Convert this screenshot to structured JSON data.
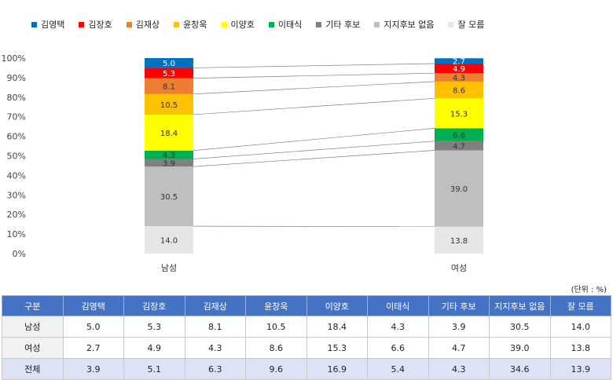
{
  "chart_data": {
    "type": "bar",
    "stacked": true,
    "normalized_percent": true,
    "categories": [
      "남성",
      "여성"
    ],
    "series": [
      {
        "name": "김영택",
        "color": "#0070c0",
        "values": [
          5.0,
          2.7
        ]
      },
      {
        "name": "김장호",
        "color": "#ff0000",
        "values": [
          5.3,
          4.9
        ]
      },
      {
        "name": "김재상",
        "color": "#ed7d31",
        "values": [
          8.1,
          4.3
        ]
      },
      {
        "name": "윤창욱",
        "color": "#ffc000",
        "values": [
          10.5,
          8.6
        ]
      },
      {
        "name": "이양호",
        "color": "#ffff00",
        "values": [
          18.4,
          15.3
        ]
      },
      {
        "name": "이태식",
        "color": "#00b050",
        "values": [
          4.3,
          6.6
        ]
      },
      {
        "name": "기타 후보",
        "color": "#808080",
        "values": [
          3.9,
          4.7
        ]
      },
      {
        "name": "지지후보 없음",
        "color": "#bfbfbf",
        "values": [
          30.5,
          39.0
        ]
      },
      {
        "name": "잘 모름",
        "color": "#e7e6e6",
        "values": [
          14.0,
          13.8
        ]
      }
    ],
    "y_ticks": [
      "0%",
      "10%",
      "20%",
      "30%",
      "40%",
      "50%",
      "60%",
      "70%",
      "80%",
      "90%",
      "100%"
    ],
    "ylim": [
      0,
      100
    ],
    "legend_position": "top",
    "connector_lines": true
  },
  "table": {
    "unit_label": "(단위 : %)",
    "header": [
      "구분",
      "김영택",
      "김장호",
      "김재상",
      "윤창욱",
      "이양호",
      "이태식",
      "기타 후보",
      "지지후보 없음",
      "잘 모름"
    ],
    "rows": [
      [
        "남성",
        "5.0",
        "5.3",
        "8.1",
        "10.5",
        "18.4",
        "4.3",
        "3.9",
        "30.5",
        "14.0"
      ],
      [
        "여성",
        "2.7",
        "4.9",
        "4.3",
        "8.6",
        "15.3",
        "6.6",
        "4.7",
        "39.0",
        "13.8"
      ],
      [
        "전체",
        "3.9",
        "5.1",
        "6.3",
        "9.6",
        "16.9",
        "5.4",
        "4.3",
        "34.6",
        "13.9"
      ]
    ]
  }
}
